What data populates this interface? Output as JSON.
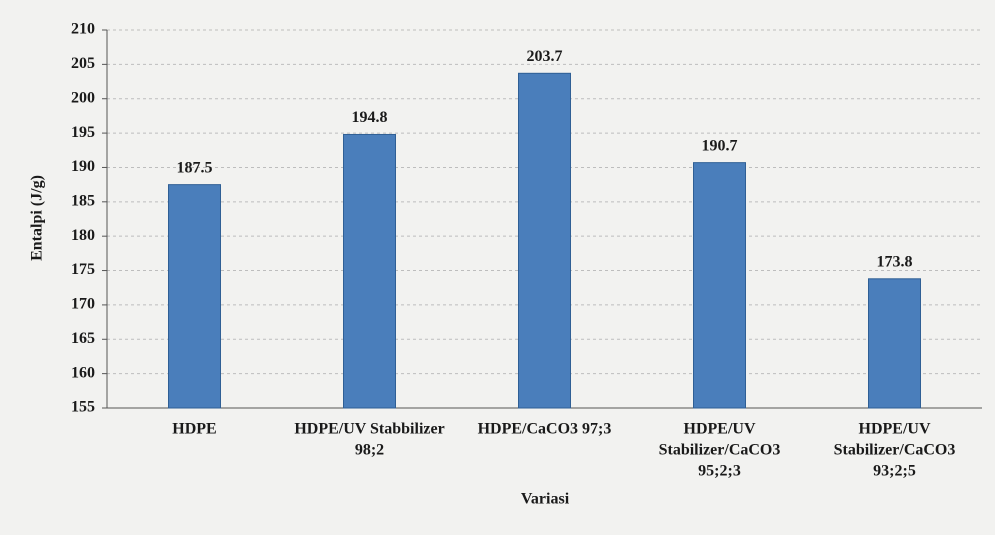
{
  "chart_data": {
    "type": "bar",
    "y_label": "Entalpi (J/g)",
    "x_label": "Variasi",
    "categories": [
      [
        "HDPE"
      ],
      [
        "HDPE/UV Stabbilizer",
        "98;2"
      ],
      [
        "HDPE/CaCO3 97;3"
      ],
      [
        "HDPE/UV",
        "Stabilizer/CaCO3",
        "95;2;3"
      ],
      [
        "HDPE/UV",
        "Stabilizer/CaCO3",
        "93;2;5"
      ]
    ],
    "values": [
      187.5,
      194.8,
      203.7,
      190.7,
      173.8
    ],
    "color": "#4a7ebb",
    "ylim": [
      155,
      210
    ],
    "yticks": [
      155,
      160,
      165,
      170,
      175,
      180,
      185,
      190,
      195,
      200,
      205,
      210
    ],
    "grid": true
  }
}
